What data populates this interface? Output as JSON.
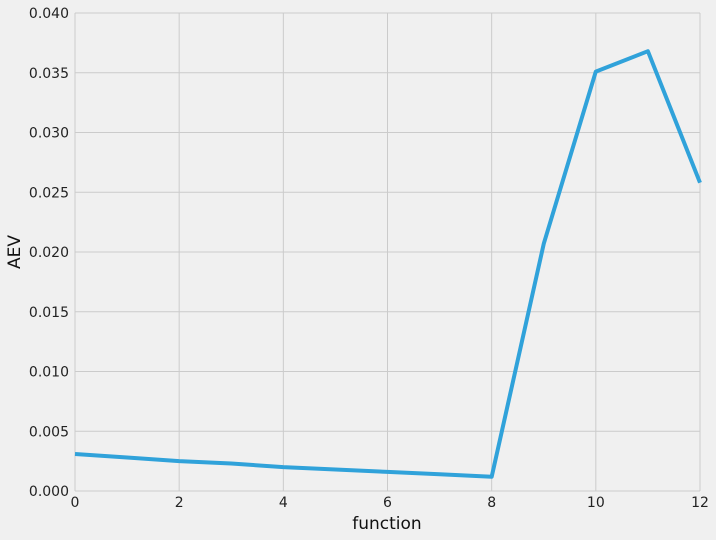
{
  "chart_data": {
    "type": "line",
    "title": "",
    "xlabel": "function",
    "ylabel": "AEV",
    "xlim": [
      0,
      12
    ],
    "ylim": [
      0,
      0.04
    ],
    "xticks": [
      0,
      2,
      4,
      6,
      8,
      10,
      12
    ],
    "yticks": [
      0.0,
      0.005,
      0.01,
      0.015,
      0.02,
      0.025,
      0.03,
      0.035,
      0.04
    ],
    "xtick_labels": [
      "0",
      "2",
      "4",
      "6",
      "8",
      "10",
      "12"
    ],
    "ytick_labels": [
      "0.000",
      "0.005",
      "0.010",
      "0.015",
      "0.020",
      "0.025",
      "0.030",
      "0.035",
      "0.040"
    ],
    "grid": true,
    "series": [
      {
        "name": "AEV",
        "color": "#30a2da",
        "x": [
          0,
          1,
          2,
          3,
          4,
          5,
          6,
          7,
          8,
          9,
          10,
          11,
          12
        ],
        "values": [
          0.0031,
          0.0028,
          0.0025,
          0.0023,
          0.002,
          0.0018,
          0.0016,
          0.0014,
          0.0012,
          0.0207,
          0.0351,
          0.0368,
          0.0258
        ]
      }
    ]
  }
}
